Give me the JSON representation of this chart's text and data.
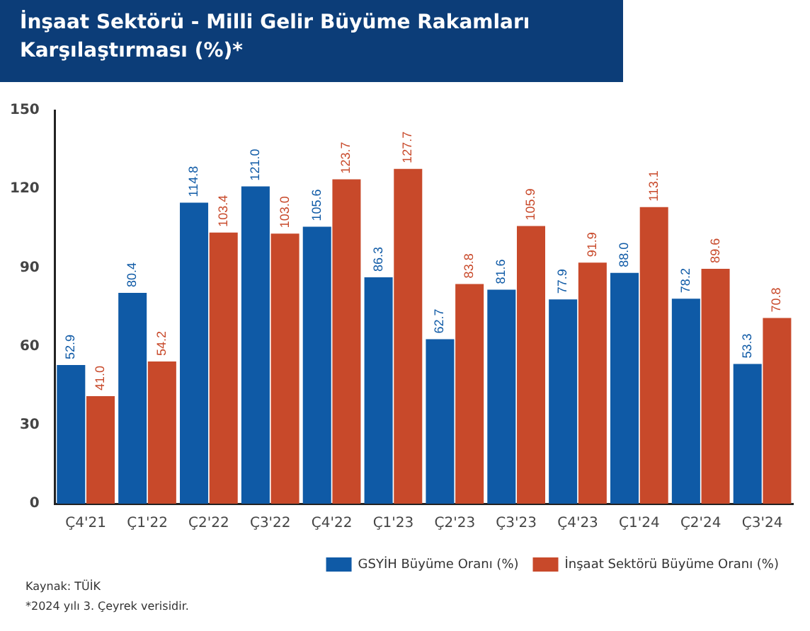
{
  "chart_data": {
    "type": "bar",
    "title": "İnşaat Sektörü - Milli Gelir Büyüme Rakamları Karşılaştırması (%)*",
    "categories": [
      "Ç4'21",
      "Ç1'22",
      "Ç2'22",
      "Ç3'22",
      "Ç4'22",
      "Ç1'23",
      "Ç2'23",
      "Ç3'23",
      "Ç4'23",
      "Ç1'24",
      "Ç2'24",
      "Ç3'24"
    ],
    "series": [
      {
        "name": "GSYİH Büyüme Oranı (%)",
        "color": "#0f5aa6",
        "values": [
          52.9,
          80.4,
          114.8,
          121.0,
          105.6,
          86.3,
          62.7,
          81.6,
          77.9,
          88.0,
          78.2,
          53.3
        ],
        "value_labels": [
          "52.9",
          "80.4",
          "114.8",
          "121.0",
          "105.6",
          "86.3",
          "62.7",
          "81.6",
          "77.9",
          "88.0",
          "78.2",
          "53.3"
        ]
      },
      {
        "name": "İnşaat Sektörü Büyüme Oranı (%)",
        "color": "#c8492a",
        "values": [
          41.0,
          54.2,
          103.4,
          103.0,
          123.7,
          127.7,
          83.8,
          105.9,
          91.9,
          113.1,
          89.6,
          70.8
        ],
        "value_labels": [
          "41.0",
          "54.2",
          "103.4",
          "103.0",
          "123.7",
          "127.7",
          "83.8",
          "105.9",
          "91.9",
          "113.1",
          "89.6",
          "70.8"
        ]
      }
    ],
    "ylim": [
      0,
      150
    ],
    "yticks": [
      0,
      30,
      60,
      90,
      120,
      150
    ],
    "grid": false,
    "legend": "bottom right",
    "annotations": [
      "Kaynak: TÜİK",
      "*2024 yılı 3. Çeyrek verisidir."
    ]
  }
}
